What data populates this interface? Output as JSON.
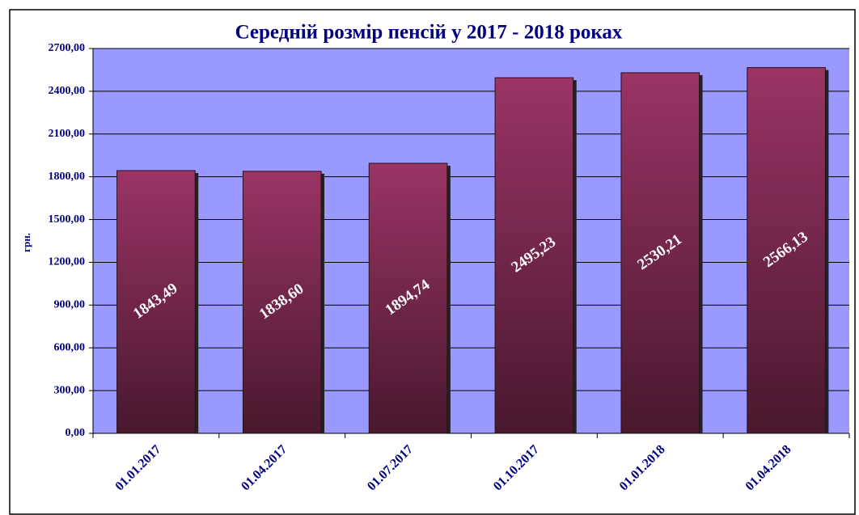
{
  "chart_data": {
    "type": "bar",
    "title": "Середній розмір пенсій у 2017 - 2018 роках",
    "y_label": "грн.",
    "categories": [
      "01.01.2017",
      "01.04.2017",
      "01.07.2017",
      "01.10.2017",
      "01.01.2018",
      "01.04.2018"
    ],
    "values": [
      1843.49,
      1838.6,
      1894.74,
      2495.23,
      2530.21,
      2566.13
    ],
    "value_labels": [
      "1843,49",
      "1838,60",
      "1894,74",
      "2495,23",
      "2530,21",
      "2566,13"
    ],
    "color": "#8a2a58",
    "ylim": [
      0,
      2700
    ],
    "yticks": [
      {
        "value": 0,
        "label": "0,00"
      },
      {
        "value": 300,
        "label": "300,00"
      },
      {
        "value": 600,
        "label": "600,00"
      },
      {
        "value": 900,
        "label": "900,00"
      },
      {
        "value": 1200,
        "label": "1200,00"
      },
      {
        "value": 1500,
        "label": "1500,00"
      },
      {
        "value": 1800,
        "label": "1800,00"
      },
      {
        "value": 2100,
        "label": "2100,00"
      },
      {
        "value": 2400,
        "label": "2400,00"
      },
      {
        "value": 2700,
        "label": "2700,00"
      }
    ],
    "grid": true
  }
}
